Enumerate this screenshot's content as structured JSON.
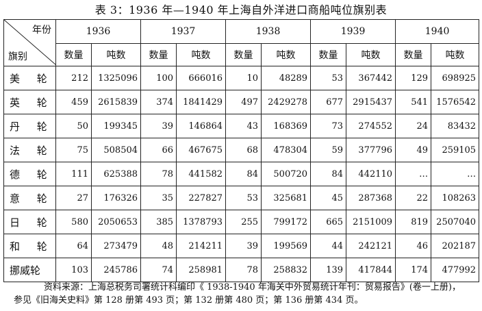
{
  "title": "表 3：1936 年—1940 年上海自外洋进口商船吨位旗别表",
  "corner": {
    "year_label": "年份",
    "flag_label": "旗别"
  },
  "years": [
    "1936",
    "1937",
    "1938",
    "1939",
    "1940"
  ],
  "subheaders": {
    "count": "数量",
    "tonnage": "吨数"
  },
  "rows": [
    {
      "flag": "美 轮",
      "cells": [
        "212",
        "1325096",
        "100",
        "666016",
        "10",
        "48289",
        "53",
        "367442",
        "129",
        "698925"
      ]
    },
    {
      "flag": "英 轮",
      "cells": [
        "459",
        "2615839",
        "374",
        "1841429",
        "497",
        "2429278",
        "677",
        "2915437",
        "541",
        "1576542"
      ]
    },
    {
      "flag": "丹 轮",
      "cells": [
        "50",
        "199345",
        "39",
        "146864",
        "43",
        "168369",
        "73",
        "274552",
        "24",
        "83432"
      ]
    },
    {
      "flag": "法 轮",
      "cells": [
        "75",
        "508504",
        "66",
        "467675",
        "68",
        "478304",
        "59",
        "377796",
        "49",
        "259105"
      ]
    },
    {
      "flag": "德 轮",
      "cells": [
        "111",
        "625388",
        "78",
        "441582",
        "84",
        "500720",
        "84",
        "442110",
        "…",
        "…"
      ]
    },
    {
      "flag": "意 轮",
      "cells": [
        "27",
        "176326",
        "35",
        "227827",
        "53",
        "325681",
        "45",
        "287368",
        "22",
        "108263"
      ]
    },
    {
      "flag": "日 轮",
      "cells": [
        "580",
        "2050653",
        "385",
        "1378793",
        "255",
        "799172",
        "665",
        "2151009",
        "819",
        "2507040"
      ]
    },
    {
      "flag": "和 轮",
      "cells": [
        "64",
        "273479",
        "48",
        "214211",
        "39",
        "199569",
        "44",
        "242121",
        "46",
        "202187"
      ]
    },
    {
      "flag": "挪威轮",
      "cells": [
        "103",
        "245786",
        "74",
        "258981",
        "78",
        "258832",
        "139",
        "417844",
        "174",
        "477992"
      ]
    }
  ],
  "source": {
    "line1": "资料来源：上海总税务司署统计科编印《 1938-1940 年海关中外贸易统计年刊：贸易报告》(卷一上册)，",
    "line2": "参见《旧海关史料》第 128 册第 493 页；第 132 册第 480 页；第 136 册第 434 页。"
  }
}
